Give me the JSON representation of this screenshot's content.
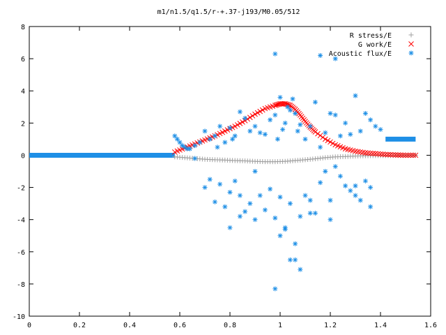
{
  "chart_data": {
    "type": "scatter",
    "title": "m1/n1.5/q1.5/r-+.37-j193/M0.05/512",
    "xlabel": "",
    "ylabel": "",
    "xlim": [
      0,
      1.6
    ],
    "ylim": [
      -10,
      8
    ],
    "xticks": [
      0,
      0.2,
      0.4,
      0.6,
      0.8,
      1,
      1.2,
      1.4,
      1.6
    ],
    "yticks": [
      -10,
      -8,
      -6,
      -4,
      -2,
      0,
      2,
      4,
      6,
      8
    ],
    "xtick_labels": [
      "0",
      "0.2",
      "0.4",
      "0.6",
      "0.8",
      "1",
      "1.2",
      "1.4",
      "1.6"
    ],
    "ytick_labels": [
      "-10",
      "-8",
      "-6",
      "-4",
      "-2",
      "0",
      "2",
      "4",
      "6",
      "8"
    ],
    "grid": false,
    "legend_position": "top-right",
    "series": [
      {
        "name": "R stress/E",
        "marker": "plus",
        "color": "#a0a0a0",
        "x": [
          0.58,
          0.62,
          0.66,
          0.7,
          0.74,
          0.78,
          0.82,
          0.86,
          0.9,
          0.94,
          0.98,
          1.02,
          1.06,
          1.1,
          1.14,
          1.18,
          1.22,
          1.26,
          1.3,
          1.34,
          1.38,
          1.42,
          1.46,
          1.5,
          1.54
        ],
        "y": [
          -0.1,
          -0.15,
          -0.2,
          -0.25,
          -0.28,
          -0.3,
          -0.33,
          -0.35,
          -0.38,
          -0.4,
          -0.4,
          -0.38,
          -0.33,
          -0.28,
          -0.22,
          -0.15,
          -0.1,
          -0.08,
          -0.05,
          -0.03,
          -0.02,
          -0.02,
          -0.01,
          -0.01,
          0.0
        ]
      },
      {
        "name": "G work/E",
        "marker": "cross",
        "color": "#ff0000",
        "x": [
          0.58,
          0.62,
          0.66,
          0.7,
          0.74,
          0.78,
          0.82,
          0.86,
          0.9,
          0.94,
          0.98,
          1.0,
          1.02,
          1.04,
          1.06,
          1.08,
          1.1,
          1.12,
          1.14,
          1.18,
          1.22,
          1.26,
          1.3,
          1.34,
          1.38,
          1.42,
          1.46,
          1.5,
          1.54
        ],
        "y": [
          0.2,
          0.45,
          0.7,
          0.95,
          1.2,
          1.5,
          1.8,
          2.15,
          2.55,
          2.9,
          3.1,
          3.2,
          3.2,
          3.1,
          2.85,
          2.5,
          2.1,
          1.75,
          1.45,
          1.0,
          0.65,
          0.4,
          0.25,
          0.15,
          0.1,
          0.05,
          0.02,
          0.0,
          0.0
        ]
      },
      {
        "name": "Acoustic flux/E",
        "marker": "star",
        "color": "#1e8fe6",
        "x": [
          0.58,
          0.59,
          0.6,
          0.61,
          0.62,
          0.63,
          0.64,
          0.66,
          0.68,
          0.7,
          0.72,
          0.74,
          0.75,
          0.76,
          0.78,
          0.8,
          0.81,
          0.82,
          0.84,
          0.86,
          0.88,
          0.9,
          0.92,
          0.94,
          0.96,
          0.98,
          0.99,
          1.0,
          1.01,
          1.02,
          1.03,
          1.04,
          1.05,
          1.06,
          1.07,
          1.08,
          1.1,
          1.12,
          1.14,
          1.16,
          1.18,
          1.2,
          1.22,
          1.24,
          1.26,
          1.28,
          1.3,
          1.32,
          1.34,
          1.36,
          1.38,
          1.4,
          0.66,
          0.7,
          0.72,
          0.74,
          0.76,
          0.78,
          0.8,
          0.82,
          0.84,
          0.86,
          0.88,
          0.9,
          0.92,
          0.94,
          0.96,
          0.98,
          1.0,
          1.02,
          1.04,
          1.06,
          1.08,
          1.1,
          1.12,
          1.14,
          1.16,
          1.18,
          1.2,
          1.22,
          1.24,
          1.26,
          1.28,
          1.3,
          1.32,
          1.34,
          1.36,
          0.98,
          1.16,
          1.22,
          1.06,
          1.04,
          1.08,
          0.98,
          1.02,
          0.8,
          0.84,
          0.9,
          1.0,
          1.12,
          1.2,
          1.3,
          1.36
        ],
        "y": [
          1.2,
          1.0,
          0.8,
          0.6,
          0.5,
          0.4,
          0.4,
          0.6,
          0.8,
          1.5,
          1.0,
          1.2,
          0.5,
          1.8,
          0.8,
          1.7,
          1.0,
          1.2,
          2.7,
          2.3,
          1.5,
          1.8,
          1.4,
          1.3,
          2.2,
          2.5,
          1.0,
          3.6,
          1.6,
          2.0,
          3.0,
          2.8,
          3.5,
          2.6,
          1.5,
          1.9,
          1.0,
          1.8,
          3.3,
          0.5,
          1.4,
          2.6,
          2.5,
          1.2,
          2.0,
          1.3,
          3.7,
          1.5,
          2.6,
          2.2,
          1.8,
          1.6,
          -0.2,
          -2.0,
          -1.5,
          -2.9,
          -1.8,
          -3.2,
          -2.3,
          -1.6,
          -2.5,
          -3.5,
          -3.0,
          -1.0,
          -2.5,
          -3.4,
          -2.1,
          -3.9,
          -2.6,
          -4.5,
          -3.0,
          -5.5,
          -3.8,
          -2.5,
          -2.8,
          -3.6,
          -1.7,
          -1.0,
          -2.8,
          -0.7,
          -1.3,
          -1.9,
          -2.2,
          -1.9,
          -2.8,
          -1.6,
          -2.0,
          6.3,
          6.2,
          6.0,
          -6.5,
          -6.5,
          -7.1,
          -8.3,
          -4.6,
          -4.5,
          -3.8,
          -4.0,
          -5.0,
          -3.6,
          -4.0,
          -2.5,
          -3.2
        ]
      }
    ],
    "acoustic_flat_segments": [
      {
        "x_start": 0.0,
        "x_end": 0.58,
        "y": 0.0
      },
      {
        "x_start": 1.42,
        "x_end": 1.54,
        "y": 1.0
      }
    ]
  },
  "legend": [
    {
      "label": "R stress/E",
      "color": "#a0a0a0",
      "marker": "plus"
    },
    {
      "label": "G work/E",
      "color": "#ff0000",
      "marker": "cross"
    },
    {
      "label": "Acoustic flux/E",
      "color": "#1e8fe6",
      "marker": "star"
    }
  ]
}
